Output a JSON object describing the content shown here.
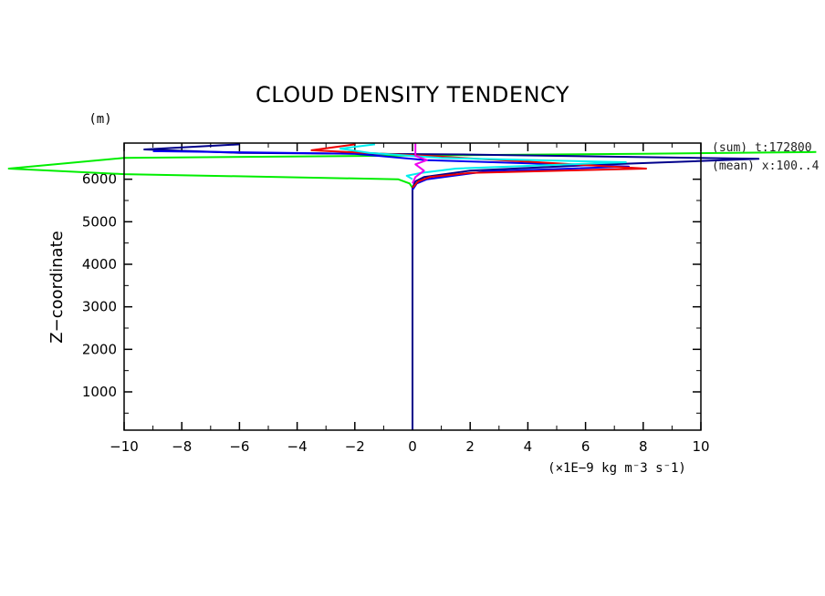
{
  "chart_data": {
    "type": "line",
    "title": "CLOUD DENSITY TENDENCY",
    "xlabel": "(×1E−9 kg m⁻3 s⁻1)",
    "ylabel": "Z−coordinate",
    "y_unit": "(m)",
    "xlim": [
      -10,
      10
    ],
    "ylim": [
      100,
      6850
    ],
    "x_ticks": [
      -10,
      -8,
      -6,
      -4,
      -2,
      0,
      2,
      4,
      6,
      8,
      10
    ],
    "x_tick_labels": [
      "−10",
      "−8",
      "−6",
      "−4",
      "−2",
      "0",
      "2",
      "4",
      "6",
      "8",
      "10"
    ],
    "y_ticks": [
      1000,
      2000,
      3000,
      4000,
      5000,
      6000
    ],
    "y_tick_labels": [
      "1000",
      "2000",
      "3000",
      "4000",
      "5000",
      "6000"
    ],
    "grid": false,
    "notes": [
      "(sum) t:172800",
      "(mean) x:100..4"
    ],
    "series": [
      {
        "color": "#00ee00",
        "x": [
          0,
          0,
          0,
          -0.1,
          -0.5,
          -10,
          -14,
          -10,
          0.5,
          8,
          14
        ],
        "y": [
          100,
          3000,
          5800,
          5900,
          6000,
          6120,
          6250,
          6500,
          6560,
          6600,
          6640
        ]
      },
      {
        "color": "#00008b",
        "x": [
          0,
          0,
          0.1,
          0.4,
          2,
          6,
          12,
          2,
          -6,
          -9.3,
          -6
        ],
        "y": [
          100,
          5800,
          5950,
          6050,
          6200,
          6330,
          6480,
          6580,
          6620,
          6700,
          6820
        ]
      },
      {
        "color": "#0000ee",
        "x": [
          0,
          0.15,
          0.5,
          2.5,
          7.5,
          0.5,
          -2,
          -9
        ],
        "y": [
          5750,
          5900,
          6000,
          6180,
          6300,
          6450,
          6600,
          6660
        ]
      },
      {
        "color": "#ee0000",
        "x": [
          0,
          0.2,
          0.6,
          2,
          8.1,
          0.5,
          -1,
          -3.5,
          -2
        ],
        "y": [
          5800,
          5950,
          6050,
          6150,
          6250,
          6550,
          6600,
          6680,
          6820
        ]
      },
      {
        "color": "#00eeee",
        "x": [
          0,
          -0.2,
          0.3,
          1.5,
          7.4,
          1,
          -1.5,
          -2.5,
          -1.3
        ],
        "y": [
          6000,
          6080,
          6150,
          6250,
          6400,
          6500,
          6620,
          6720,
          6820
        ]
      },
      {
        "color": "#ee00ee",
        "x": [
          0,
          0.1,
          0.4,
          0.1,
          0.5,
          0.1,
          0.1
        ],
        "y": [
          5900,
          6050,
          6200,
          6350,
          6450,
          6550,
          6850
        ]
      }
    ]
  }
}
